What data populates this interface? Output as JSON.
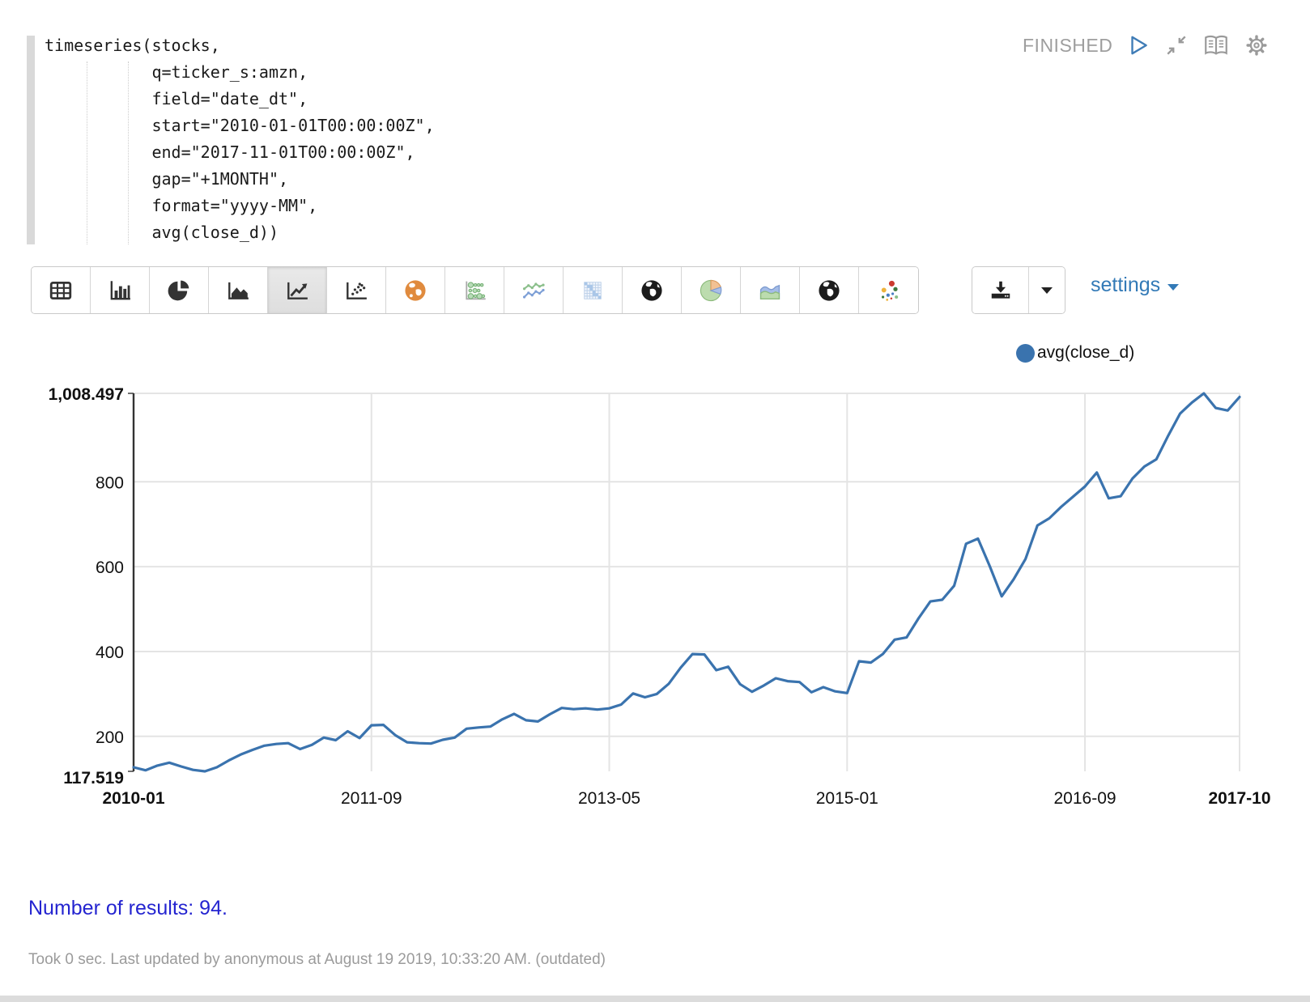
{
  "editor": {
    "code": "timeseries(stocks,\n           q=ticker_s:amzn,\n           field=\"date_dt\",\n           start=\"2010-01-01T00:00:00Z\",\n           end=\"2017-11-01T00:00:00Z\",\n           gap=\"+1MONTH\",\n           format=\"yyyy-MM\",\n           avg(close_d))"
  },
  "status": {
    "label": "FINISHED",
    "icons": [
      "play-icon",
      "compress-icon",
      "book-icon",
      "gear-icon"
    ]
  },
  "toolbar": {
    "chart_type_icons": [
      "table-icon",
      "bar-chart-icon",
      "pie-chart-icon",
      "area-chart-icon",
      "line-chart-icon",
      "scatter-plot-icon",
      "globe-orange-icon",
      "bubble-chart-icon",
      "multi-line-chart-icon",
      "matrix-heatmap-icon",
      "globe-dark-icon",
      "pie-colored-icon",
      "area-colored-icon",
      "globe-dark-icon-2",
      "bubble-colored-icon"
    ],
    "selected_index": 4,
    "download_icon": "download-icon",
    "settings_label": "settings"
  },
  "chart_data": {
    "type": "line",
    "title": "",
    "legend": [
      {
        "label": "avg(close_d)",
        "color": "#3A73AE"
      }
    ],
    "x_start": "2010-01",
    "x_end": "2017-10",
    "gap": "+1MONTH",
    "n_points": 94,
    "values": [
      127,
      120,
      131,
      138,
      129,
      121,
      117.519,
      127,
      143,
      157,
      168,
      178,
      182,
      184,
      170,
      180,
      197,
      191,
      212,
      196,
      226,
      227,
      203,
      186,
      184,
      183,
      192,
      197,
      218,
      221,
      223,
      240,
      253,
      238,
      235,
      252,
      267,
      264,
      266,
      263,
      266,
      275,
      301,
      292,
      300,
      324,
      362,
      394,
      393,
      356,
      364,
      323,
      305,
      320,
      337,
      330,
      328,
      304,
      316,
      306,
      302,
      377,
      374,
      394,
      428,
      433,
      478,
      518,
      522,
      555,
      654,
      666,
      601,
      530,
      570,
      618,
      697,
      714,
      741,
      765,
      789,
      822,
      761,
      766,
      808,
      836,
      853,
      909,
      961,
      987,
      1008.497,
      974,
      968,
      1000
    ],
    "ylim": [
      117.519,
      1008.497
    ],
    "y_ticks": [
      200,
      400,
      600,
      800
    ],
    "y_min_label": "117.519",
    "y_max_label": "1,008.497",
    "x_ticks": [
      {
        "i": 0,
        "label": "2010-01",
        "bold": true
      },
      {
        "i": 20,
        "label": "2011-09",
        "bold": false
      },
      {
        "i": 40,
        "label": "2013-05",
        "bold": false
      },
      {
        "i": 60,
        "label": "2015-01",
        "bold": false
      },
      {
        "i": 80,
        "label": "2016-09",
        "bold": false
      },
      {
        "i": 93,
        "label": "2017-10",
        "bold": true
      }
    ],
    "grid": true,
    "legend_position": "top-right"
  },
  "results": {
    "text": "Number of results: 94."
  },
  "footer": {
    "text": "Took 0 sec. Last updated by anonymous at August 19 2019, 10:33:20 AM. (outdated)"
  },
  "colors": {
    "series": "#3A73AE",
    "link_blue": "#337ab7",
    "results_blue": "#2424d0",
    "status_gray": "#9e9e9e",
    "gridline": "#e4e4e4",
    "axis": "#333333"
  }
}
